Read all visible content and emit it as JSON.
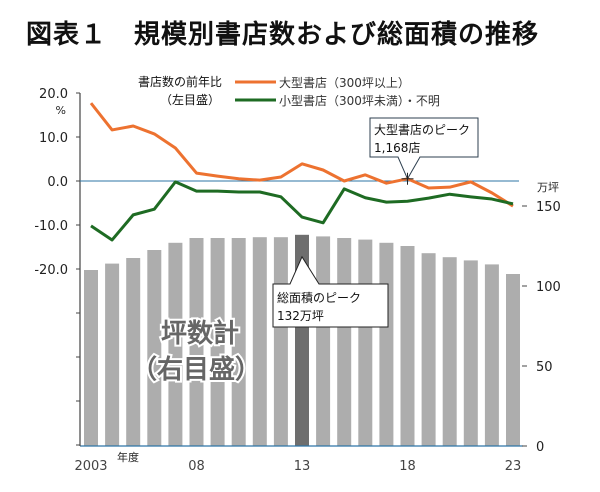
{
  "title": "図表１　規模別書店数および総面積の推移",
  "chart_data": {
    "type": "bar+line",
    "title": "図表１　規模別書店数および総面積の推移",
    "xlabel": "年度",
    "categories": [
      "2003",
      "2004",
      "2005",
      "2006",
      "2007",
      "2008",
      "2009",
      "2010",
      "2011",
      "2012",
      "2013",
      "2014",
      "2015",
      "2016",
      "2017",
      "2018",
      "2019",
      "2020",
      "2021",
      "2022",
      "2023"
    ],
    "x_tick_labels": [
      {
        "index": 0,
        "label": "2003"
      },
      {
        "index": 5,
        "label": "08"
      },
      {
        "index": 10,
        "label": "13"
      },
      {
        "index": 15,
        "label": "18"
      },
      {
        "index": 20,
        "label": "23"
      }
    ],
    "left_axis": {
      "label": "書店数の前年比（左目盛）",
      "unit": "%",
      "range": [
        -60,
        20
      ],
      "tick_labels": [
        "20.0",
        "10.0",
        "0.0",
        "-10.0",
        "-20.0"
      ],
      "tick_values": [
        20,
        10,
        0,
        -10,
        -20,
        -30,
        -40,
        -50,
        -60
      ]
    },
    "right_axis": {
      "label": "坪数計（右目盛）",
      "unit": "万坪",
      "range": [
        0,
        150
      ],
      "tick_labels": [
        "150",
        "100",
        "50",
        "0"
      ],
      "tick_values": [
        150,
        100,
        50,
        0
      ]
    },
    "bars": {
      "name": "坪数計（右目盛）",
      "axis": "right",
      "values": [
        110,
        114,
        117.5,
        122.5,
        127,
        130,
        130,
        130,
        130.5,
        130.5,
        132,
        131,
        130,
        129,
        127,
        125,
        120.5,
        118,
        116,
        113.5,
        107.5
      ],
      "highlight_index": 10,
      "color": "#adadad",
      "highlight_color": "#6e6e6e"
    },
    "series": [
      {
        "name": "大型書店（300坪以上）",
        "axis": "left",
        "color": "#ed7230",
        "values": [
          17.7,
          11.6,
          12.5,
          10.7,
          7.5,
          1.8,
          1.1,
          0.5,
          0.2,
          0.9,
          3.9,
          2.5,
          0.0,
          1.4,
          -0.5,
          0.5,
          -1.6,
          -1.4,
          -0.2,
          -2.7,
          -5.7
        ]
      },
      {
        "name": "小型書店（300坪未満）・不明",
        "axis": "left",
        "color": "#1e6b23",
        "values": [
          -10.2,
          -13.4,
          -7.7,
          -6.4,
          -0.2,
          -2.3,
          -2.3,
          -2.5,
          -2.5,
          -3.6,
          -8.2,
          -9.5,
          -1.8,
          -3.8,
          -4.8,
          -4.6,
          -3.9,
          -3.0,
          -3.6,
          -4.1,
          -5.2
        ]
      }
    ],
    "reference_line": {
      "axis": "left",
      "value": 0,
      "color": "#2e75a6"
    },
    "legend": {
      "title_line1": "書店数の前年比",
      "title_line2": "（左目盛）",
      "placement": "top"
    },
    "annotations": [
      {
        "text_line1": "大型書店のピーク",
        "text_line2": "1,168店",
        "target_index": 15,
        "series": 0
      },
      {
        "text_line1": "総面積のピーク",
        "text_line2": "132万坪",
        "target_index": 10,
        "series": "bars"
      }
    ],
    "bar_inner_label_line1": "坪数計",
    "bar_inner_label_line2": "（右目盛）"
  }
}
